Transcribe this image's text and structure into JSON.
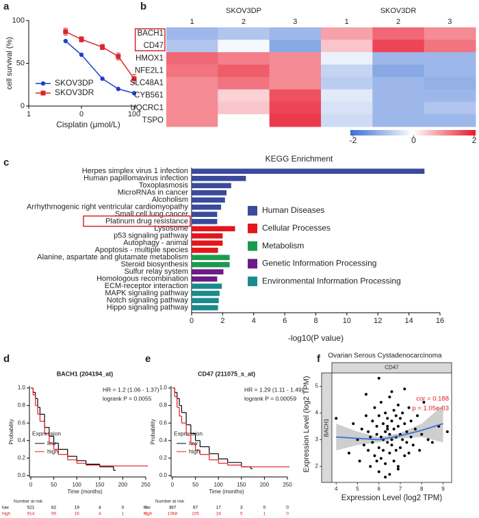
{
  "chart_data": [
    {
      "label": "a",
      "type": "line",
      "ylabel": "cell survival (%)",
      "xlabel": "Cisplatin (μmol/L)",
      "xlog": true,
      "xlim": [
        1,
        100
      ],
      "xticks": [
        1,
        {
          "value": 10,
          "label": "0"
        },
        100
      ],
      "ylim": [
        0,
        100
      ],
      "yticks": [
        0,
        50,
        100
      ],
      "legend": "lower left",
      "x": [
        5,
        10,
        25,
        50,
        100
      ],
      "series": [
        {
          "name": "SKOV3DP",
          "color": "#1f3fd0",
          "marker": "circle",
          "values": [
            76,
            60,
            32,
            20,
            15
          ]
        },
        {
          "name": "SKOV3DR",
          "color": "#d9262c",
          "marker": "square",
          "values": [
            87,
            78,
            69,
            58,
            32
          ],
          "errors": [
            4,
            3,
            3,
            4,
            5
          ]
        }
      ]
    },
    {
      "label": "b",
      "type": "heatmap",
      "groups": [
        "SKOV3DP",
        "SKOV3DR"
      ],
      "columns": [
        "1",
        "2",
        "3",
        "1",
        "2",
        "3"
      ],
      "rows": [
        "BACH1",
        "CD47",
        "HMOX1",
        "NFE2L1",
        "SLC48A1",
        "CYB561",
        "UQCRC1",
        "TSPO"
      ],
      "values": [
        [
          -1.0,
          -0.8,
          -1.0,
          0.8,
          1.3,
          1.0
        ],
        [
          -0.8,
          -0.1,
          -1.2,
          0.5,
          1.6,
          1.2
        ],
        [
          1.3,
          1.1,
          1.0,
          -0.2,
          -1.0,
          -1.0
        ],
        [
          1.2,
          1.4,
          1.0,
          -0.6,
          -1.2,
          -1.0
        ],
        [
          1.0,
          1.2,
          1.0,
          -0.7,
          -1.0,
          -1.1
        ],
        [
          1.0,
          0.4,
          1.5,
          -0.3,
          -1.0,
          -1.0
        ],
        [
          1.0,
          0.5,
          1.6,
          -0.4,
          -1.0,
          -0.8
        ],
        [
          1.0,
          0.0,
          1.7,
          -0.5,
          -1.0,
          -1.0
        ]
      ],
      "highlight_rows": [
        0,
        1
      ],
      "highlight_color": "#d62728",
      "colorbar": {
        "lim": [
          -2,
          2
        ],
        "ticks": [
          -2,
          0,
          2
        ],
        "colors": [
          "#3b6fd4",
          "#ffffff",
          "#e8172b"
        ]
      }
    },
    {
      "label": "c",
      "type": "hbar",
      "title": "KEGG Enrichment",
      "xlabel": "-log10(P value)",
      "xlim": [
        0,
        16
      ],
      "xticks": [
        0,
        2,
        4,
        6,
        8,
        10,
        12,
        14,
        16
      ],
      "categories": [
        "Herpes simplex virus 1 infection",
        "Human papillomavirus infection",
        "Toxoplasmosis",
        "MicroRNAs in cancer",
        "Alcoholism",
        "Arrhythmogenic right ventricular cardiomyopathy",
        "Small cell lung cancer",
        "Platinum drug resistance",
        "Lysosome",
        "p53 signaling pathway",
        "Autophagy - animal",
        "Apoptosis - multiple species",
        "Alanine, aspartate and glutamate metabolism",
        "Steroid biosynthesis",
        "Sulfur relay system",
        "Homologous recombination",
        "ECM-receptor interaction",
        "MAPK signaling pathway",
        "Notch signaling pathway",
        "Hippo signaling pathway"
      ],
      "highlight_category": 7,
      "highlight_color": "#d62728",
      "series": [
        {
          "name": "Human Diseases",
          "color": "#3a4a9c",
          "values": [
            15.0,
            3.5,
            2.55,
            2.25,
            2.15,
            1.9,
            1.65,
            1.65,
            null,
            null,
            null,
            null,
            null,
            null,
            null,
            null,
            null,
            null,
            null,
            null
          ]
        },
        {
          "name": "Cellular Processes",
          "color": "#e3161c",
          "values": [
            null,
            null,
            null,
            null,
            null,
            null,
            null,
            null,
            2.8,
            2.0,
            2.0,
            1.7,
            null,
            null,
            null,
            null,
            null,
            null,
            null,
            null
          ]
        },
        {
          "name": "Metabolism",
          "color": "#1b9a4e",
          "values": [
            null,
            null,
            null,
            null,
            null,
            null,
            null,
            null,
            null,
            null,
            null,
            null,
            2.45,
            2.45,
            null,
            null,
            null,
            null,
            null,
            null
          ]
        },
        {
          "name": "Genetic Information Processing",
          "color": "#6a1b86",
          "values": [
            null,
            null,
            null,
            null,
            null,
            null,
            null,
            null,
            null,
            null,
            null,
            null,
            null,
            null,
            2.05,
            1.65,
            null,
            null,
            null,
            null
          ]
        },
        {
          "name": "Environmental Information Processing",
          "color": "#1a8a8c",
          "values": [
            null,
            null,
            null,
            null,
            null,
            null,
            null,
            null,
            null,
            null,
            null,
            null,
            null,
            null,
            null,
            null,
            1.95,
            1.8,
            1.75,
            1.7
          ]
        }
      ]
    },
    {
      "label": "d",
      "type": "km",
      "title": "BACH1 (204194_at)",
      "annotations": [
        "HR = 1.2 (1.06 - 1.37)",
        "logrank P = 0.0055"
      ],
      "xlabel": "Time (months)",
      "ylabel": "Probability",
      "legend_title": "Expression",
      "xlim": [
        0,
        250
      ],
      "xticks": [
        0,
        50,
        100,
        150,
        200,
        250
      ],
      "ylim": [
        0,
        1
      ],
      "yticks": [
        {
          "value": 0,
          "label": "0.0"
        },
        {
          "value": 0.2,
          "label": "0.2"
        },
        {
          "value": 0.4,
          "label": "0.4"
        },
        {
          "value": 0.6,
          "label": "0.6"
        },
        {
          "value": 0.8,
          "label": "0.8"
        },
        {
          "value": 1,
          "label": "1.0"
        }
      ],
      "series": [
        {
          "name": "low",
          "color": "#000000",
          "x": [
            0,
            5,
            10,
            15,
            20,
            30,
            40,
            50,
            60,
            80,
            100,
            120,
            150,
            180
          ],
          "y": [
            1,
            0.95,
            0.88,
            0.78,
            0.7,
            0.55,
            0.45,
            0.37,
            0.3,
            0.22,
            0.17,
            0.13,
            0.1,
            0.06
          ]
        },
        {
          "name": "high",
          "color": "#e0191c",
          "x": [
            0,
            5,
            10,
            15,
            20,
            30,
            40,
            50,
            60,
            80,
            100,
            120,
            150,
            200,
            250
          ],
          "y": [
            1,
            0.92,
            0.8,
            0.7,
            0.62,
            0.48,
            0.37,
            0.3,
            0.24,
            0.18,
            0.14,
            0.12,
            0.11,
            0.11,
            0.11
          ]
        }
      ],
      "risk_table": {
        "title": "Number at risk",
        "rows": [
          {
            "name": "low",
            "values": [
              521,
              82,
              19,
              4,
              0,
              0
            ]
          },
          {
            "name": "high",
            "values": [
              914,
              90,
              16,
              4,
              1,
              0
            ]
          }
        ]
      }
    },
    {
      "label": "e",
      "type": "km",
      "title": "CD47 (211075_s_at)",
      "annotations": [
        "HR = 1.29 (1.11 - 1.49)",
        "logrank P = 0.00059"
      ],
      "xlabel": "Time (months)",
      "ylabel": "Probability",
      "legend_title": "Expression",
      "xlim": [
        0,
        250
      ],
      "xticks": [
        0,
        50,
        100,
        150,
        200,
        250
      ],
      "ylim": [
        0,
        1
      ],
      "yticks": [
        {
          "value": 0,
          "label": "0.0"
        },
        {
          "value": 0.2,
          "label": "0.2"
        },
        {
          "value": 0.4,
          "label": "0.4"
        },
        {
          "value": 0.6,
          "label": "0.6"
        },
        {
          "value": 0.8,
          "label": "0.8"
        },
        {
          "value": 1,
          "label": "1.0"
        }
      ],
      "series": [
        {
          "name": "low",
          "color": "#000000",
          "x": [
            0,
            5,
            10,
            15,
            20,
            30,
            40,
            50,
            60,
            80,
            100,
            120,
            150,
            170
          ],
          "y": [
            1,
            0.95,
            0.88,
            0.8,
            0.72,
            0.58,
            0.48,
            0.4,
            0.33,
            0.25,
            0.19,
            0.15,
            0.1,
            0.08
          ]
        },
        {
          "name": "high",
          "color": "#e0191c",
          "x": [
            0,
            5,
            10,
            15,
            20,
            30,
            40,
            50,
            60,
            80,
            100,
            120,
            150,
            200,
            250
          ],
          "y": [
            1,
            0.9,
            0.78,
            0.68,
            0.6,
            0.46,
            0.36,
            0.29,
            0.24,
            0.18,
            0.14,
            0.12,
            0.1,
            0.1,
            0.1
          ]
        }
      ],
      "risk_table": {
        "title": "Number at risk",
        "rows": [
          {
            "name": "low",
            "values": [
              367,
              67,
              17,
              3,
              0,
              0
            ]
          },
          {
            "name": "high",
            "values": [
              1068,
              105,
              18,
              5,
              1,
              0
            ]
          }
        ]
      }
    },
    {
      "label": "f",
      "type": "scatter",
      "title": "Ovarian Serous Cystadenocarcinoma",
      "strip": "CD47",
      "side_strip": "BACH1",
      "xlabel": "Expression Level (log2 TPM)",
      "ylabel": "Expression Level (log2 TPM)",
      "annotations": [
        "cor = 0.188",
        "p = 1.05e-03"
      ],
      "annotation_color": "#e0191c",
      "xlim": [
        3.8,
        9.4
      ],
      "xticks": [
        4,
        5,
        6,
        7,
        8,
        9
      ],
      "ylim": [
        1.4,
        5.5
      ],
      "yticks": [
        2,
        3,
        4,
        5
      ],
      "color": "#000000",
      "fit_color": "#3a6fd8",
      "x": [
        4.0,
        4.6,
        4.8,
        5.0,
        5.1,
        5.2,
        5.3,
        5.4,
        5.5,
        5.5,
        5.6,
        5.6,
        5.7,
        5.7,
        5.8,
        5.8,
        5.9,
        5.9,
        6.0,
        6.0,
        6.0,
        6.1,
        6.1,
        6.1,
        6.2,
        6.2,
        6.2,
        6.3,
        6.3,
        6.3,
        6.4,
        6.4,
        6.4,
        6.5,
        6.5,
        6.5,
        6.5,
        6.6,
        6.6,
        6.6,
        6.7,
        6.7,
        6.7,
        6.8,
        6.8,
        6.8,
        6.9,
        6.9,
        6.9,
        7.0,
        7.0,
        7.0,
        7.1,
        7.1,
        7.2,
        7.2,
        7.3,
        7.3,
        7.4,
        7.4,
        7.5,
        7.5,
        7.6,
        7.7,
        7.8,
        7.9,
        8.0,
        8.1,
        8.3,
        8.5,
        8.8,
        9.2,
        6.0,
        6.3,
        6.6,
        5.4,
        7.2,
        6.9,
        5.9,
        6.4
      ],
      "y": [
        3.8,
        2.5,
        3.6,
        3.0,
        2.2,
        3.4,
        2.8,
        3.9,
        2.6,
        3.3,
        3.1,
        2.0,
        3.7,
        2.9,
        4.2,
        2.4,
        3.2,
        3.5,
        1.8,
        2.7,
        3.9,
        3.1,
        2.3,
        4.4,
        3.0,
        3.6,
        2.6,
        3.3,
        2.1,
        4.0,
        2.9,
        3.5,
        3.8,
        3.2,
        2.5,
        4.6,
        1.7,
        3.0,
        3.7,
        2.8,
        3.4,
        2.2,
        4.1,
        3.1,
        2.6,
        3.9,
        3.5,
        2.0,
        4.3,
        3.2,
        2.7,
        3.8,
        3.0,
        4.0,
        2.4,
        3.6,
        3.3,
        2.9,
        4.2,
        2.5,
        3.1,
        3.7,
        2.8,
        3.4,
        3.9,
        2.6,
        3.2,
        4.4,
        3.0,
        2.9,
        3.5,
        3.3,
        5.3,
        1.6,
        4.8,
        4.7,
        4.9,
        1.9,
        2.2,
        3.4
      ],
      "fit": {
        "x": [
          4,
          5,
          6,
          7,
          8,
          9
        ],
        "y": [
          3.1,
          3.05,
          3.0,
          3.15,
          3.35,
          3.6
        ],
        "lower": [
          2.6,
          2.8,
          2.9,
          3.05,
          3.1,
          2.9
        ],
        "upper": [
          3.6,
          3.3,
          3.1,
          3.25,
          3.6,
          4.3
        ]
      }
    }
  ]
}
